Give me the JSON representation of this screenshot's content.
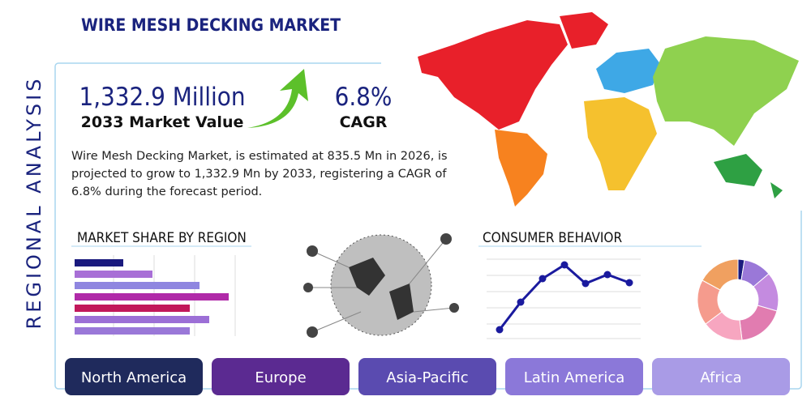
{
  "header": {
    "title": "WIRE MESH DECKING MARKET",
    "side_label": "REGIONAL ANALYSIS"
  },
  "highlights": [
    {
      "value": "1,332.9 Million",
      "label": "2033 Market Value"
    },
    {
      "value": "6.8%",
      "label": "CAGR"
    }
  ],
  "summary": "Wire Mesh Decking Market, is estimated at 835.5 Mn in 2026, is projected to grow to 1,332.9 Mn by 2033, registering a CAGR of 6.8% during the forecast period.",
  "sections": {
    "market_share": "MARKET SHARE BY REGION",
    "consumer_behavior": "CONSUMER BEHAVIOR"
  },
  "regions": [
    "North America",
    "Europe",
    "Asia-Pacific",
    "Latin America",
    "Africa"
  ]
}
